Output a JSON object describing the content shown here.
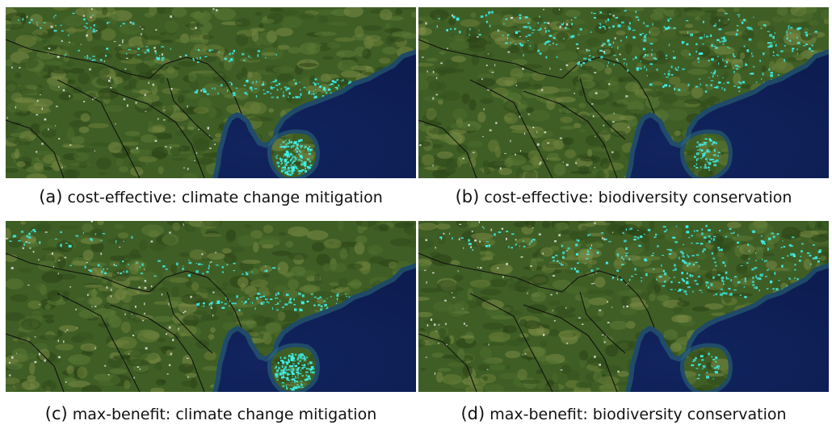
{
  "colors": {
    "land": "#3f5e25",
    "sea": "#0d1d52",
    "shallow": "#2e6e78",
    "highlight": "#3ff2ee",
    "border": "#111111"
  },
  "panels": [
    {
      "id": "a",
      "label": "(a)",
      "caption": "cost-effective: climate change mitigation",
      "focus": "south"
    },
    {
      "id": "b",
      "label": "(b)",
      "caption": "cost-effective: biodiversity conservation",
      "focus": "north"
    },
    {
      "id": "c",
      "label": "(c)",
      "caption": "max-benefit: climate change mitigation",
      "focus": "south"
    },
    {
      "id": "d",
      "label": "(d)",
      "caption": "max-benefit: biodiversity conservation",
      "focus": "northeast"
    }
  ]
}
